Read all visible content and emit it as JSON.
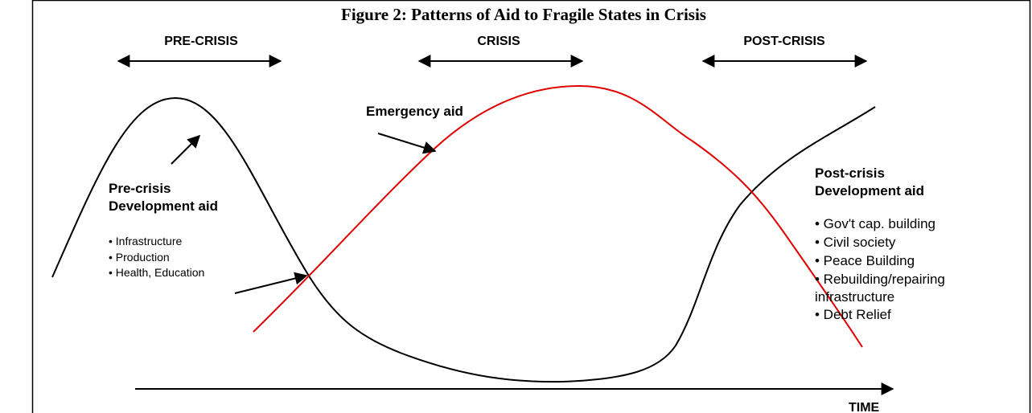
{
  "title": "Figure 2: Patterns of Aid to Fragile States in Crisis",
  "phases": [
    "PRE-CRISIS",
    "CRISIS",
    "POST-CRISIS"
  ],
  "emergency_aid": {
    "label": "Emergency aid"
  },
  "pre_crisis": {
    "heading": [
      "Pre-crisis",
      "Development aid"
    ],
    "items": [
      "• Infrastructure",
      "• Production",
      "• Health, Education"
    ]
  },
  "post_crisis": {
    "heading": [
      "Post-crisis",
      "Development aid"
    ],
    "items": [
      "• Gov't cap. building",
      "• Civil society",
      "• Peace Building",
      "• Rebuilding/repairing",
      "infrastructure",
      "• Debt Relief"
    ]
  },
  "time_axis": {
    "label": "TIME"
  }
}
